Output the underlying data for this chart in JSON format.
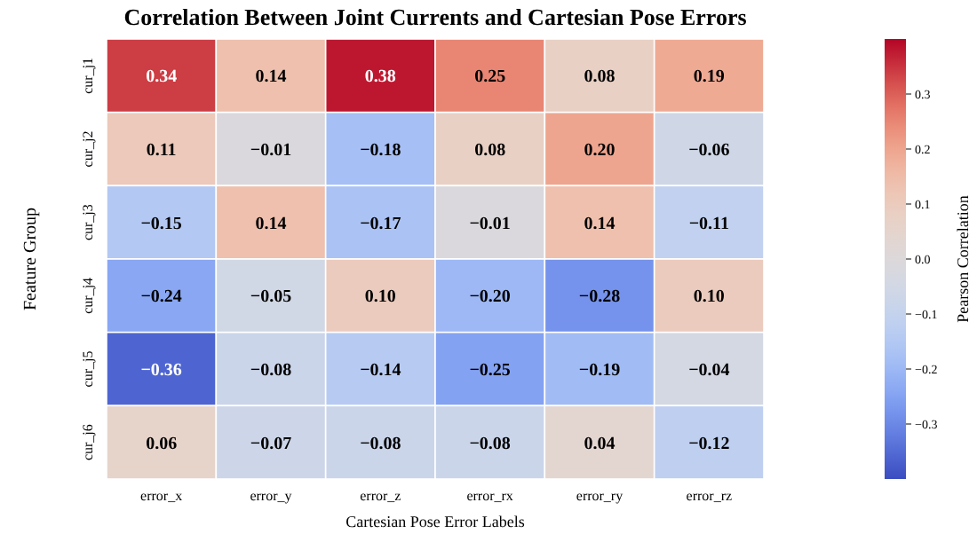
{
  "chart_data": {
    "type": "heatmap",
    "title": "Correlation Between Joint Currents and Cartesian Pose Errors",
    "xlabel": "Cartesian Pose Error Labels",
    "ylabel": "Feature Group",
    "clabel": "Pearson Correlation",
    "categories": [
      "error_x",
      "error_y",
      "error_z",
      "error_rx",
      "error_ry",
      "error_rz"
    ],
    "y_categories": [
      "cur_j1",
      "cur_j2",
      "cur_j3",
      "cur_j4",
      "cur_j5",
      "cur_j6"
    ],
    "cells": [
      [
        0.34,
        0.14,
        0.38,
        0.25,
        0.08,
        0.19
      ],
      [
        0.11,
        -0.01,
        -0.18,
        0.08,
        0.2,
        -0.06
      ],
      [
        -0.15,
        0.14,
        -0.17,
        -0.01,
        0.14,
        -0.11
      ],
      [
        -0.24,
        -0.05,
        0.1,
        -0.2,
        -0.28,
        0.1
      ],
      [
        -0.36,
        -0.08,
        -0.14,
        -0.25,
        -0.19,
        -0.04
      ],
      [
        0.06,
        -0.07,
        -0.08,
        -0.08,
        0.04,
        -0.12
      ]
    ],
    "cell_labels": [
      [
        "0.34",
        "0.14",
        "0.38",
        "0.25",
        "0.08",
        "0.19"
      ],
      [
        "0.11",
        "−0.01",
        "−0.18",
        "0.08",
        "0.20",
        "−0.06"
      ],
      [
        "−0.15",
        "0.14",
        "−0.17",
        "−0.01",
        "0.14",
        "−0.11"
      ],
      [
        "−0.24",
        "−0.05",
        "0.10",
        "−0.20",
        "−0.28",
        "0.10"
      ],
      [
        "−0.36",
        "−0.08",
        "−0.14",
        "−0.25",
        "−0.19",
        "−0.04"
      ],
      [
        "0.06",
        "−0.07",
        "−0.08",
        "−0.08",
        "0.04",
        "−0.12"
      ]
    ],
    "clim": [
      -0.4,
      0.4
    ],
    "cticks": [
      {
        "value": -0.3,
        "label": "−0.3"
      },
      {
        "value": -0.2,
        "label": "−0.2"
      },
      {
        "value": -0.1,
        "label": "−0.1"
      },
      {
        "value": 0,
        "label": "0.0"
      },
      0.1,
      0.2,
      0.3
    ]
  }
}
